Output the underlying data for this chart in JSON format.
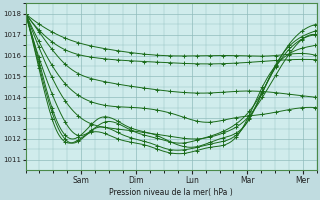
{
  "bg_color": "#c0dce0",
  "plot_bg_color": "#d0ecec",
  "grid_color": "#90bcbc",
  "line_color": "#1a6b1a",
  "ylabel_text": "Pression niveau de la mer( hPa )",
  "x_tick_labels": [
    "Sam",
    "Dim",
    "Lun",
    "Mar",
    "Mer"
  ],
  "ylim": [
    1010.5,
    1018.5
  ],
  "yticks": [
    1011,
    1012,
    1013,
    1014,
    1015,
    1016,
    1017,
    1018
  ],
  "figsize": [
    3.2,
    2.0
  ],
  "dpi": 100,
  "total_hours": 126,
  "lines": [
    {
      "xp": [
        0,
        6,
        18,
        36,
        60,
        90,
        108,
        120,
        126
      ],
      "yp": [
        1018.0,
        1017.5,
        1016.8,
        1016.3,
        1016.0,
        1016.0,
        1016.0,
        1016.1,
        1016.0
      ]
    },
    {
      "xp": [
        0,
        6,
        15,
        30,
        54,
        80,
        100,
        114,
        126
      ],
      "yp": [
        1018.0,
        1017.2,
        1016.4,
        1015.9,
        1015.7,
        1015.6,
        1015.7,
        1015.8,
        1015.8
      ]
    },
    {
      "xp": [
        0,
        8,
        18,
        32,
        54,
        78,
        96,
        110,
        126
      ],
      "yp": [
        1018.0,
        1016.8,
        1015.5,
        1014.8,
        1014.4,
        1014.2,
        1014.3,
        1014.2,
        1014.0
      ]
    },
    {
      "xp": [
        0,
        8,
        16,
        28,
        48,
        64,
        78,
        90,
        104,
        120,
        126
      ],
      "yp": [
        1018.0,
        1016.2,
        1014.8,
        1013.8,
        1013.5,
        1013.2,
        1012.8,
        1013.0,
        1013.2,
        1013.5,
        1013.5
      ]
    },
    {
      "xp": [
        0,
        8,
        15,
        24,
        38,
        52,
        64,
        74,
        86,
        96,
        108,
        120,
        126
      ],
      "yp": [
        1018.0,
        1015.8,
        1014.2,
        1013.0,
        1012.5,
        1012.3,
        1012.1,
        1012.0,
        1012.3,
        1013.0,
        1015.0,
        1016.8,
        1017.0
      ]
    },
    {
      "xp": [
        0,
        7,
        14,
        22,
        34,
        46,
        58,
        66,
        76,
        88,
        100,
        112,
        120,
        126
      ],
      "yp": [
        1018.0,
        1015.5,
        1013.5,
        1012.2,
        1012.8,
        1012.4,
        1012.0,
        1011.8,
        1012.0,
        1012.5,
        1013.8,
        1016.2,
        1017.2,
        1017.5
      ]
    },
    {
      "xp": [
        0,
        7,
        13,
        20,
        32,
        44,
        56,
        64,
        72,
        84,
        96,
        108,
        118,
        126
      ],
      "yp": [
        1018.0,
        1015.2,
        1013.0,
        1012.0,
        1013.0,
        1012.6,
        1012.2,
        1011.8,
        1011.6,
        1012.0,
        1012.8,
        1015.5,
        1016.8,
        1017.2
      ]
    },
    {
      "xp": [
        0,
        7,
        13,
        20,
        30,
        42,
        54,
        62,
        70,
        82,
        94,
        106,
        116,
        126
      ],
      "yp": [
        1018.0,
        1015.0,
        1012.8,
        1011.8,
        1012.5,
        1012.2,
        1011.8,
        1011.5,
        1011.5,
        1011.8,
        1012.5,
        1015.0,
        1016.5,
        1017.0
      ]
    },
    {
      "xp": [
        0,
        7,
        13,
        19,
        28,
        40,
        52,
        60,
        68,
        80,
        92,
        104,
        116,
        126
      ],
      "yp": [
        1018.0,
        1014.8,
        1012.5,
        1011.8,
        1012.3,
        1012.0,
        1011.7,
        1011.4,
        1011.3,
        1011.6,
        1012.2,
        1014.8,
        1016.2,
        1016.5
      ]
    }
  ]
}
